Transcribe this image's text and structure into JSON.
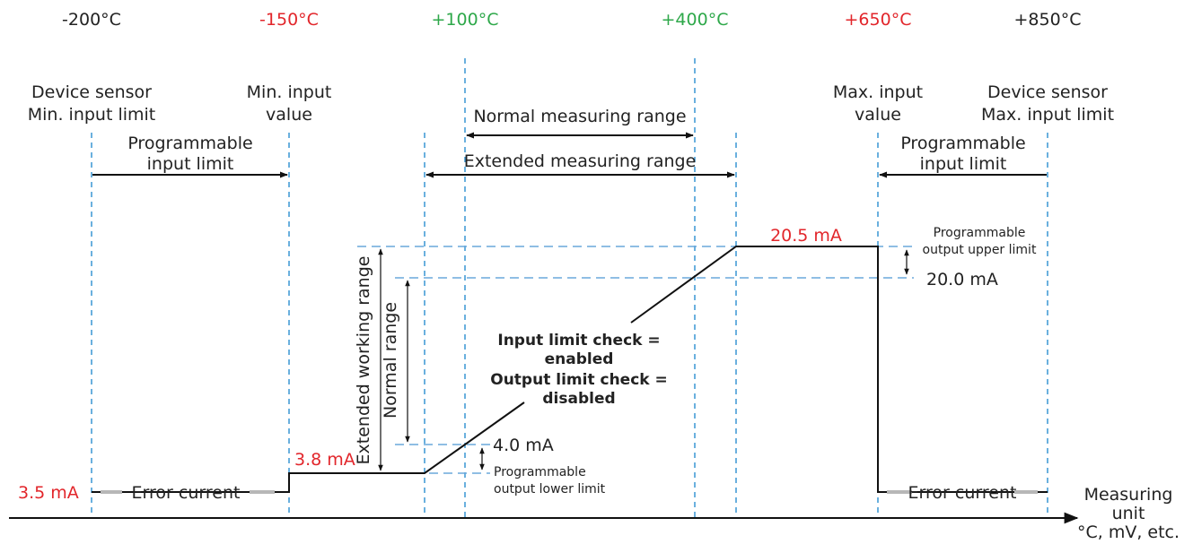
{
  "temps": {
    "t1": "-200°C",
    "t2": "-150°C",
    "t3": "+100°C",
    "t4": "+400°C",
    "t5": "+650°C",
    "t6": "+850°C"
  },
  "colors": {
    "limit": "#e2262b",
    "range": "#2ea84a",
    "guide": "#2b8ed0"
  },
  "labels": {
    "sensor_min_l1": "Device sensor",
    "sensor_min_l2": "Min. input limit",
    "min_input_l1": "Min. input",
    "min_input_l2": "value",
    "max_input_l1": "Max. input",
    "max_input_l2": "value",
    "sensor_max_l1": "Device sensor",
    "sensor_max_l2": "Max. input limit",
    "prog_input_left_l1": "Programmable",
    "prog_input_left_l2": "input limit",
    "prog_input_right_l1": "Programmable",
    "prog_input_right_l2": "input limit",
    "normal_measuring": "Normal measuring range",
    "extended_measuring": "Extended measuring range",
    "extended_working": "Extended working range",
    "normal_range": "Normal range",
    "ma_20_5": "20.5 mA",
    "ma_20_0": "20.0 mA",
    "ma_4_0": "4.0 mA",
    "ma_3_8": "3.8 mA",
    "ma_3_5": "3.5 mA",
    "prog_upper_l1": "Programmable",
    "prog_upper_l2": "output upper limit",
    "prog_lower_l1": "Programmable",
    "prog_lower_l2": "output lower limit",
    "error_left": "Error current",
    "error_right": "Error current",
    "check_l1": "Input limit check =",
    "check_l2": "enabled",
    "check_l3": "Output limit check =",
    "check_l4": "disabled",
    "unit_l1": "Measuring",
    "unit_l2": "unit",
    "unit_l3": "°C, mV, etc."
  }
}
